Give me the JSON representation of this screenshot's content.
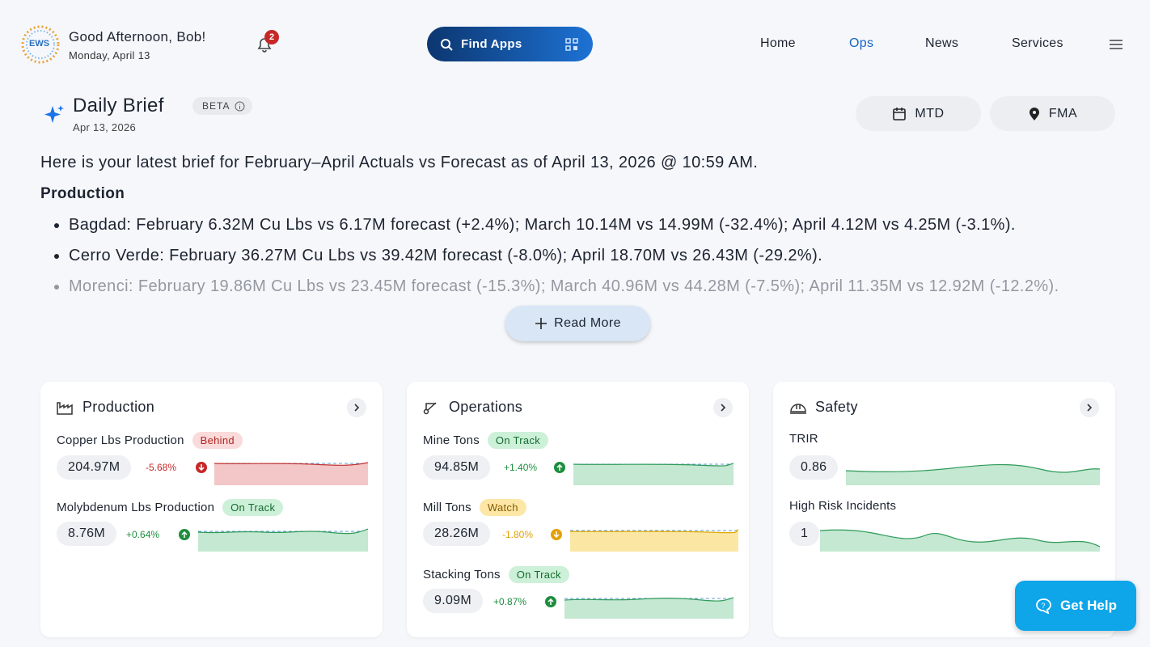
{
  "header": {
    "logo": "EWS",
    "greeting": "Good Afternoon, Bob!",
    "date": "Monday, April 13",
    "notifications": "2",
    "search": "Find Apps",
    "nav": [
      "Home",
      "Ops",
      "News",
      "Services"
    ]
  },
  "brief": {
    "title": "Daily Brief",
    "badge": "BETA",
    "date": "Apr 13, 2026",
    "filters": [
      "MTD",
      "FMA"
    ],
    "intro": "Here is your latest brief for February–April Actuals vs Forecast as of April 13, 2026 @ 10:59 AM.",
    "section": "Production",
    "bullets": [
      "Bagdad: February 6.32M Cu Lbs vs 6.17M forecast (+2.4%); March 10.14M vs 14.99M (-32.4%); April 4.12M vs 4.25M (-3.1%).",
      "Cerro Verde: February 36.27M Cu Lbs vs 39.42M forecast (-8.0%); April 18.70M vs 26.43M (-29.2%).",
      "Morenci: February 19.86M Cu Lbs vs 23.45M forecast (-15.3%); March 40.96M vs 44.28M (-7.5%); April 11.35M vs 12.92M (-12.2%)."
    ],
    "read_more": "Read More"
  },
  "cards": [
    {
      "title": "Production",
      "metrics": [
        {
          "name": "Copper Lbs Production",
          "status": "Behind",
          "value": "204.97M",
          "change": "-5.68%"
        },
        {
          "name": "Molybdenum Lbs Production",
          "status": "On Track",
          "value": "8.76M",
          "change": "+0.64%"
        }
      ]
    },
    {
      "title": "Operations",
      "metrics": [
        {
          "name": "Mine Tons",
          "status": "On Track",
          "value": "94.85M",
          "change": "+1.40%"
        },
        {
          "name": "Mill Tons",
          "status": "Watch",
          "value": "28.26M",
          "change": "-1.80%"
        },
        {
          "name": "Stacking Tons",
          "status": "On Track",
          "value": "9.09M",
          "change": "+0.87%"
        }
      ]
    },
    {
      "title": "Safety",
      "metrics": [
        {
          "name": "TRIR",
          "value": "0.86"
        },
        {
          "name": "High Risk Incidents",
          "value": "1"
        }
      ]
    }
  ],
  "help": "Get Help"
}
